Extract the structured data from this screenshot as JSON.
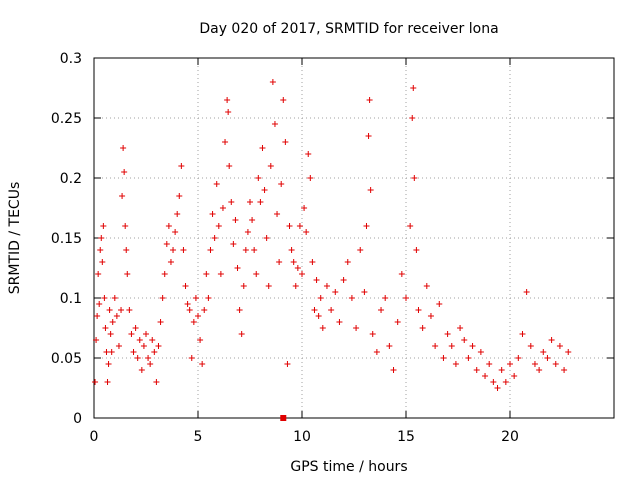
{
  "chart_data": {
    "type": "scatter",
    "title": "Day 020 of 2017, SRMTID for receiver lona",
    "xlabel": "GPS time / hours",
    "ylabel": "SRMTID / TECUs",
    "xlim": [
      0,
      25
    ],
    "ylim": [
      0,
      0.3
    ],
    "xticks": [
      0,
      5,
      10,
      15,
      20
    ],
    "xtick_labels": [
      "0",
      "5",
      "10",
      "15",
      "20"
    ],
    "yticks": [
      0,
      0.05,
      0.1,
      0.15,
      0.2,
      0.25,
      0.3
    ],
    "ytick_labels": [
      "0",
      "0.05",
      "0.1",
      "0.15",
      "0.2",
      "0.25",
      "0.3"
    ],
    "grid": true,
    "marker": "+",
    "color": "#e00000",
    "series": [
      {
        "name": "SRMTID",
        "points": [
          [
            0.05,
            0.03
          ],
          [
            0.1,
            0.065
          ],
          [
            0.15,
            0.085
          ],
          [
            0.2,
            0.12
          ],
          [
            0.25,
            0.095
          ],
          [
            0.3,
            0.14
          ],
          [
            0.35,
            0.15
          ],
          [
            0.4,
            0.13
          ],
          [
            0.45,
            0.16
          ],
          [
            0.5,
            0.1
          ],
          [
            0.55,
            0.075
          ],
          [
            0.6,
            0.055
          ],
          [
            0.65,
            0.03
          ],
          [
            0.7,
            0.045
          ],
          [
            0.75,
            0.09
          ],
          [
            0.8,
            0.07
          ],
          [
            0.85,
            0.055
          ],
          [
            0.9,
            0.08
          ],
          [
            1.0,
            0.1
          ],
          [
            1.1,
            0.085
          ],
          [
            1.2,
            0.06
          ],
          [
            1.3,
            0.09
          ],
          [
            1.35,
            0.185
          ],
          [
            1.4,
            0.225
          ],
          [
            1.45,
            0.205
          ],
          [
            1.5,
            0.16
          ],
          [
            1.55,
            0.14
          ],
          [
            1.6,
            0.12
          ],
          [
            1.7,
            0.09
          ],
          [
            1.8,
            0.07
          ],
          [
            1.9,
            0.055
          ],
          [
            2.0,
            0.075
          ],
          [
            2.1,
            0.05
          ],
          [
            2.2,
            0.065
          ],
          [
            2.3,
            0.04
          ],
          [
            2.4,
            0.06
          ],
          [
            2.5,
            0.07
          ],
          [
            2.6,
            0.05
          ],
          [
            2.7,
            0.045
          ],
          [
            2.8,
            0.065
          ],
          [
            2.9,
            0.055
          ],
          [
            3.0,
            0.03
          ],
          [
            3.1,
            0.06
          ],
          [
            3.2,
            0.08
          ],
          [
            3.3,
            0.1
          ],
          [
            3.4,
            0.12
          ],
          [
            3.5,
            0.145
          ],
          [
            3.6,
            0.16
          ],
          [
            3.7,
            0.13
          ],
          [
            3.8,
            0.14
          ],
          [
            3.9,
            0.155
          ],
          [
            4.0,
            0.17
          ],
          [
            4.1,
            0.185
          ],
          [
            4.2,
            0.21
          ],
          [
            4.3,
            0.14
          ],
          [
            4.4,
            0.11
          ],
          [
            4.5,
            0.095
          ],
          [
            4.6,
            0.09
          ],
          [
            4.7,
            0.05
          ],
          [
            4.8,
            0.08
          ],
          [
            4.9,
            0.1
          ],
          [
            5.0,
            0.085
          ],
          [
            5.1,
            0.065
          ],
          [
            5.2,
            0.045
          ],
          [
            5.3,
            0.09
          ],
          [
            5.4,
            0.12
          ],
          [
            5.5,
            0.1
          ],
          [
            5.6,
            0.14
          ],
          [
            5.7,
            0.17
          ],
          [
            5.8,
            0.15
          ],
          [
            5.9,
            0.195
          ],
          [
            6.0,
            0.16
          ],
          [
            6.1,
            0.12
          ],
          [
            6.2,
            0.175
          ],
          [
            6.3,
            0.23
          ],
          [
            6.4,
            0.265
          ],
          [
            6.45,
            0.255
          ],
          [
            6.5,
            0.21
          ],
          [
            6.6,
            0.18
          ],
          [
            6.7,
            0.145
          ],
          [
            6.8,
            0.165
          ],
          [
            6.9,
            0.125
          ],
          [
            7.0,
            0.09
          ],
          [
            7.1,
            0.07
          ],
          [
            7.2,
            0.11
          ],
          [
            7.3,
            0.14
          ],
          [
            7.4,
            0.155
          ],
          [
            7.5,
            0.18
          ],
          [
            7.6,
            0.165
          ],
          [
            7.7,
            0.14
          ],
          [
            7.8,
            0.12
          ],
          [
            7.9,
            0.2
          ],
          [
            8.0,
            0.18
          ],
          [
            8.1,
            0.225
          ],
          [
            8.2,
            0.19
          ],
          [
            8.3,
            0.15
          ],
          [
            8.4,
            0.11
          ],
          [
            8.5,
            0.21
          ],
          [
            8.6,
            0.28
          ],
          [
            8.7,
            0.245
          ],
          [
            8.8,
            0.17
          ],
          [
            8.9,
            0.13
          ],
          [
            9.0,
            0.195
          ],
          [
            9.1,
            0.265
          ],
          [
            9.2,
            0.23
          ],
          [
            9.3,
            0.045
          ],
          [
            9.4,
            0.16
          ],
          [
            9.5,
            0.14
          ],
          [
            9.6,
            0.13
          ],
          [
            9.7,
            0.11
          ],
          [
            9.8,
            0.125
          ],
          [
            9.9,
            0.16
          ],
          [
            10.0,
            0.12
          ],
          [
            10.1,
            0.175
          ],
          [
            10.2,
            0.155
          ],
          [
            10.3,
            0.22
          ],
          [
            10.4,
            0.2
          ],
          [
            10.5,
            0.13
          ],
          [
            10.6,
            0.09
          ],
          [
            10.7,
            0.115
          ],
          [
            10.8,
            0.085
          ],
          [
            10.9,
            0.1
          ],
          [
            11.0,
            0.075
          ],
          [
            11.2,
            0.11
          ],
          [
            11.4,
            0.09
          ],
          [
            11.6,
            0.105
          ],
          [
            11.8,
            0.08
          ],
          [
            12.0,
            0.115
          ],
          [
            12.2,
            0.13
          ],
          [
            12.4,
            0.1
          ],
          [
            12.6,
            0.075
          ],
          [
            12.8,
            0.14
          ],
          [
            13.0,
            0.105
          ],
          [
            13.1,
            0.16
          ],
          [
            13.2,
            0.235
          ],
          [
            13.25,
            0.265
          ],
          [
            13.3,
            0.19
          ],
          [
            13.4,
            0.07
          ],
          [
            13.6,
            0.055
          ],
          [
            13.8,
            0.09
          ],
          [
            14.0,
            0.1
          ],
          [
            14.2,
            0.06
          ],
          [
            14.4,
            0.04
          ],
          [
            14.6,
            0.08
          ],
          [
            14.8,
            0.12
          ],
          [
            15.0,
            0.1
          ],
          [
            15.2,
            0.16
          ],
          [
            15.3,
            0.25
          ],
          [
            15.35,
            0.275
          ],
          [
            15.4,
            0.2
          ],
          [
            15.5,
            0.14
          ],
          [
            15.6,
            0.09
          ],
          [
            15.8,
            0.075
          ],
          [
            16.0,
            0.11
          ],
          [
            16.2,
            0.085
          ],
          [
            16.4,
            0.06
          ],
          [
            16.6,
            0.095
          ],
          [
            16.8,
            0.05
          ],
          [
            17.0,
            0.07
          ],
          [
            17.2,
            0.06
          ],
          [
            17.4,
            0.045
          ],
          [
            17.6,
            0.075
          ],
          [
            17.8,
            0.065
          ],
          [
            18.0,
            0.05
          ],
          [
            18.2,
            0.06
          ],
          [
            18.4,
            0.04
          ],
          [
            18.6,
            0.055
          ],
          [
            18.8,
            0.035
          ],
          [
            19.0,
            0.045
          ],
          [
            19.2,
            0.03
          ],
          [
            19.4,
            0.025
          ],
          [
            19.6,
            0.04
          ],
          [
            19.8,
            0.03
          ],
          [
            20.0,
            0.045
          ],
          [
            20.2,
            0.035
          ],
          [
            20.4,
            0.05
          ],
          [
            20.6,
            0.07
          ],
          [
            20.8,
            0.105
          ],
          [
            21.0,
            0.06
          ],
          [
            21.2,
            0.045
          ],
          [
            21.4,
            0.04
          ],
          [
            21.6,
            0.055
          ],
          [
            21.8,
            0.05
          ],
          [
            22.0,
            0.065
          ],
          [
            22.2,
            0.045
          ],
          [
            22.4,
            0.06
          ],
          [
            22.6,
            0.04
          ],
          [
            22.8,
            0.055
          ]
        ]
      }
    ],
    "outlier_marker": {
      "x": 9.1,
      "y": 0.0,
      "shape": "square"
    }
  }
}
